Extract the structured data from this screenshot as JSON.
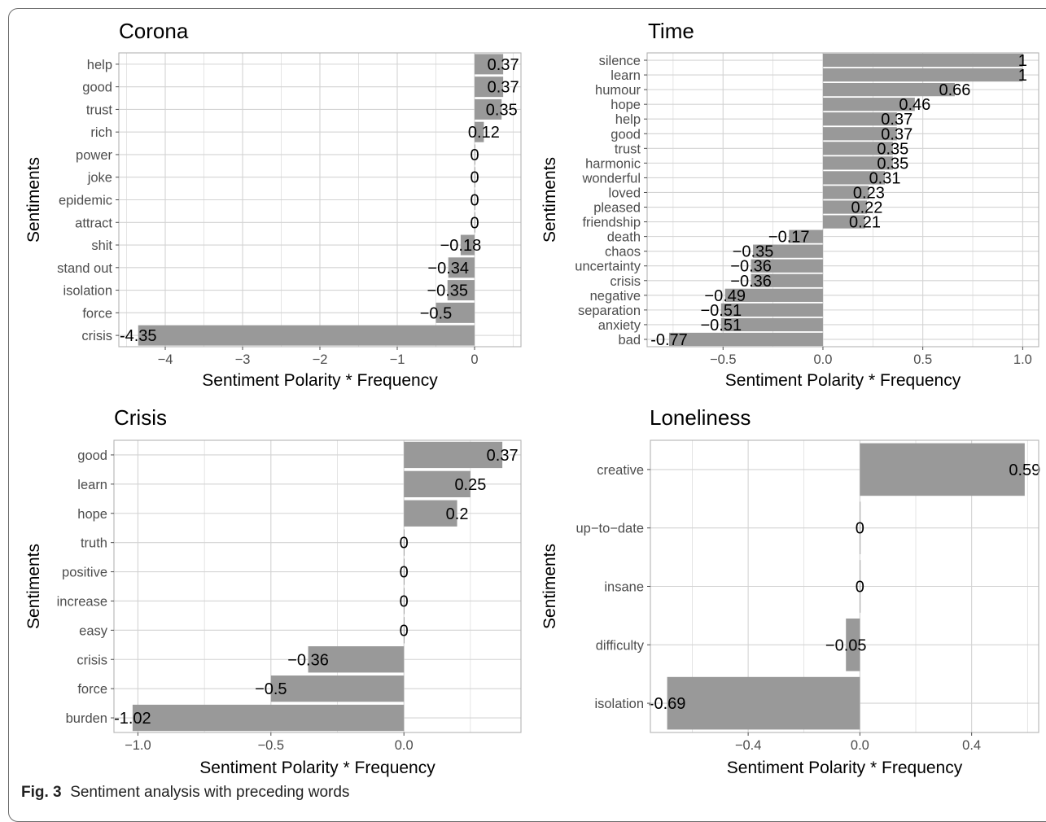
{
  "caption": {
    "label": "Fig. 3",
    "text": "Sentiment analysis with preceding words"
  },
  "colors": {
    "bar": "#999999",
    "grid": "#d3d3d3",
    "panel_border": "#b3b3b3",
    "tick_text": "#4d4d4d",
    "text": "#000000"
  },
  "chart_data": [
    {
      "type": "bar",
      "orientation": "horizontal",
      "title": "Corona",
      "xlabel": "Sentiment Polarity * Frequency",
      "ylabel": "Sentiments",
      "categories": [
        "help",
        "good",
        "trust",
        "rich",
        "power",
        "joke",
        "epidemic",
        "attract",
        "shit",
        "stand out",
        "isolation",
        "force",
        "crisis"
      ],
      "values": [
        0.37,
        0.37,
        0.35,
        0.12,
        0,
        0,
        0,
        0,
        -0.18,
        -0.34,
        -0.35,
        -0.5,
        -4.35
      ],
      "value_labels": [
        "0.37",
        "0.37",
        "0.35",
        "0.12",
        "0",
        "0",
        "0",
        "0",
        "−0.18",
        "−0.34",
        "−0.35",
        "−0.5",
        "-4.35"
      ],
      "xlim": [
        -4.6,
        0.6
      ],
      "xticks": [
        -4,
        -3,
        -2,
        -1,
        0
      ],
      "xtick_labels": [
        "−4",
        "−3",
        "−2",
        "−1",
        "0"
      ],
      "grid": true
    },
    {
      "type": "bar",
      "orientation": "horizontal",
      "title": "Time",
      "xlabel": "Sentiment Polarity * Frequency",
      "ylabel": "Sentiments",
      "categories": [
        "silence",
        "learn",
        "humour",
        "hope",
        "help",
        "good",
        "trust",
        "harmonic",
        "wonderful",
        "loved",
        "pleased",
        "friendship",
        "death",
        "chaos",
        "uncertainty",
        "crisis",
        "negative",
        "separation",
        "anxiety",
        "bad"
      ],
      "values": [
        1,
        1,
        0.66,
        0.46,
        0.37,
        0.37,
        0.35,
        0.35,
        0.31,
        0.23,
        0.22,
        0.21,
        -0.17,
        -0.35,
        -0.36,
        -0.36,
        -0.49,
        -0.51,
        -0.51,
        -0.77
      ],
      "value_labels": [
        "1",
        "1",
        "0.66",
        "0.46",
        "0.37",
        "0.37",
        "0.35",
        "0.35",
        "0.31",
        "0.23",
        "0.22",
        "0.21",
        "−0.17",
        "−0.35",
        "−0.36",
        "−0.36",
        "−0.49",
        "−0.51",
        "−0.51",
        "-0.77"
      ],
      "xlim": [
        -0.88,
        1.08
      ],
      "xticks": [
        -0.5,
        0.0,
        0.5,
        1.0
      ],
      "xtick_labels": [
        "−0.5",
        "0.0",
        "0.5",
        "1.0"
      ],
      "grid": true
    },
    {
      "type": "bar",
      "orientation": "horizontal",
      "title": "Crisis",
      "xlabel": "Sentiment Polarity * Frequency",
      "ylabel": "Sentiments",
      "categories": [
        "good",
        "learn",
        "hope",
        "truth",
        "positive",
        "increase",
        "easy",
        "crisis",
        "force",
        "burden"
      ],
      "values": [
        0.37,
        0.25,
        0.2,
        0,
        0,
        0,
        0,
        -0.36,
        -0.5,
        -1.02
      ],
      "value_labels": [
        "0.37",
        "0.25",
        "0.2",
        "0",
        "0",
        "0",
        "0",
        "−0.36",
        "−0.5",
        "-1.02"
      ],
      "xlim": [
        -1.09,
        0.44
      ],
      "xticks": [
        -1.0,
        -0.5,
        0.0
      ],
      "xtick_labels": [
        "−1.0",
        "−0.5",
        "0.0"
      ],
      "grid": true
    },
    {
      "type": "bar",
      "orientation": "horizontal",
      "title": "Loneliness",
      "xlabel": "Sentiment Polarity * Frequency",
      "ylabel": "Sentiments",
      "categories": [
        "creative",
        "up−to−date",
        "insane",
        "difficulty",
        "isolation"
      ],
      "values": [
        0.59,
        0,
        0,
        -0.05,
        -0.69
      ],
      "value_labels": [
        "0.59",
        "0",
        "0",
        "−0.05",
        "-0.69"
      ],
      "xlim": [
        -0.75,
        0.64
      ],
      "xticks": [
        -0.4,
        0.0,
        0.4
      ],
      "xtick_labels": [
        "−0.4",
        "0.0",
        "0.4"
      ],
      "grid": true
    }
  ]
}
